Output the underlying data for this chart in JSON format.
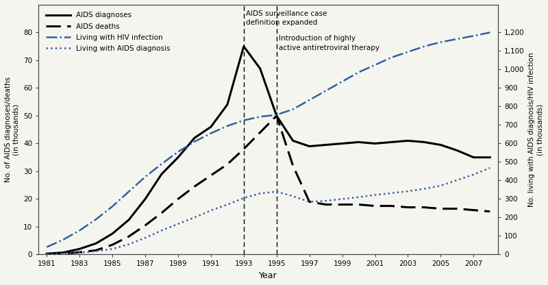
{
  "xlabel": "Year",
  "ylabel_left": "No. of AIDS diagnoses/deaths\n(in thousands)",
  "ylabel_right": "No. living with AIDS diagnosis/HIV infection\n(in thousands)",
  "ylim_left": [
    0,
    90
  ],
  "ylim_right": [
    0,
    1350
  ],
  "yticks_left": [
    0,
    10,
    20,
    30,
    40,
    50,
    60,
    70,
    80
  ],
  "yticks_right": [
    0,
    100,
    200,
    300,
    400,
    500,
    600,
    700,
    800,
    900,
    1000,
    1100,
    1200
  ],
  "xticks": [
    1981,
    1983,
    1985,
    1987,
    1989,
    1991,
    1993,
    1995,
    1997,
    1999,
    2001,
    2003,
    2005,
    2007
  ],
  "xlim": [
    1980.5,
    2008.5
  ],
  "vlines": [
    1993,
    1995
  ],
  "vline_label_1": "AIDS surveillance case\ndefinition expanded",
  "vline_label_2": "Introduction of highly\nactive antiretroviral therapy",
  "aids_diagnoses_x": [
    1981,
    1982,
    1983,
    1984,
    1985,
    1986,
    1987,
    1988,
    1989,
    1990,
    1991,
    1992,
    1993,
    1994,
    1995,
    1996,
    1997,
    1998,
    1999,
    2000,
    2001,
    2002,
    2003,
    2004,
    2005,
    2006,
    2007,
    2008
  ],
  "aids_diagnoses_y": [
    0.3,
    0.7,
    2.0,
    4.0,
    7.5,
    12.5,
    20.0,
    29.0,
    35.0,
    42.0,
    46.0,
    54.0,
    75.0,
    67.0,
    50.0,
    41.0,
    39.0,
    39.5,
    40.0,
    40.5,
    40.0,
    40.5,
    41.0,
    40.5,
    39.5,
    37.5,
    35.0,
    35.0
  ],
  "aids_deaths_x": [
    1981,
    1982,
    1983,
    1984,
    1985,
    1986,
    1987,
    1988,
    1989,
    1990,
    1991,
    1992,
    1993,
    1994,
    1995,
    1996,
    1997,
    1998,
    1999,
    2000,
    2001,
    2002,
    2003,
    2004,
    2005,
    2006,
    2007,
    2008
  ],
  "aids_deaths_y": [
    0.1,
    0.3,
    0.8,
    1.5,
    3.5,
    6.5,
    10.5,
    15.0,
    20.0,
    24.5,
    28.5,
    32.5,
    38.0,
    44.0,
    50.0,
    32.0,
    19.0,
    18.0,
    18.0,
    18.0,
    17.5,
    17.5,
    17.0,
    17.0,
    16.5,
    16.5,
    16.0,
    15.5
  ],
  "living_hiv_x": [
    1981,
    1982,
    1983,
    1984,
    1985,
    1986,
    1987,
    1988,
    1989,
    1990,
    1991,
    1992,
    1993,
    1994,
    1995,
    1996,
    1997,
    1998,
    1999,
    2000,
    2001,
    2002,
    2003,
    2004,
    2005,
    2006,
    2007,
    2008
  ],
  "living_hiv_y": [
    40,
    80,
    130,
    190,
    260,
    340,
    420,
    490,
    555,
    610,
    655,
    695,
    725,
    745,
    755,
    785,
    835,
    885,
    935,
    985,
    1025,
    1065,
    1095,
    1125,
    1148,
    1165,
    1182,
    1200
  ],
  "living_aids_x": [
    1981,
    1982,
    1983,
    1984,
    1985,
    1986,
    1987,
    1988,
    1989,
    1990,
    1991,
    1992,
    1993,
    1994,
    1995,
    1996,
    1997,
    1998,
    1999,
    2000,
    2001,
    2002,
    2003,
    2004,
    2005,
    2006,
    2007,
    2008
  ],
  "living_aids_y": [
    2,
    5,
    10,
    18,
    30,
    55,
    90,
    130,
    165,
    200,
    238,
    270,
    305,
    330,
    340,
    315,
    285,
    290,
    300,
    310,
    322,
    332,
    342,
    355,
    372,
    402,
    432,
    468
  ],
  "color_black": "#000000",
  "color_blue": "#3060a0",
  "bg": "#f5f5f0"
}
